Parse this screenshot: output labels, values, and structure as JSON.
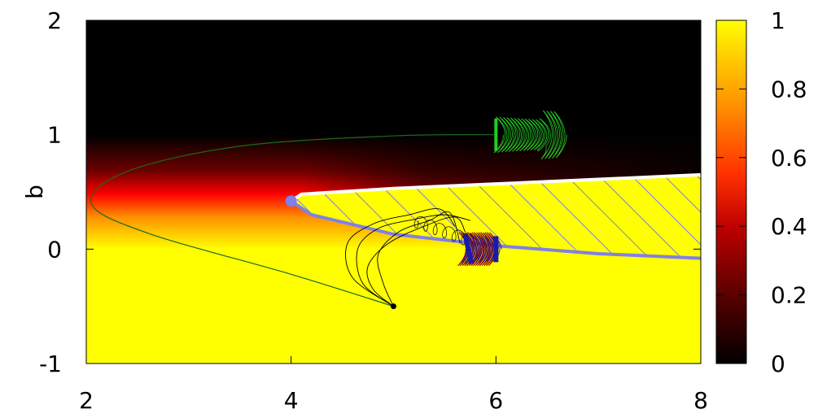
{
  "chart_data": {
    "type": "heatmap",
    "title": "",
    "xlabel": "",
    "ylabel": "b",
    "xlim": [
      2,
      8
    ],
    "ylim": [
      -1,
      2
    ],
    "x_ticks": [
      "2",
      "4",
      "6",
      "8"
    ],
    "x_tick_values": [
      2,
      4,
      6,
      8
    ],
    "y_ticks": [
      "-1",
      "0",
      "1",
      "2"
    ],
    "y_tick_values": [
      -1,
      0,
      1,
      2
    ],
    "colorbar": {
      "range": [
        0,
        1
      ],
      "ticks": [
        "0",
        "0.2",
        "0.4",
        "0.6",
        "0.8",
        "1"
      ],
      "tick_values": [
        0,
        0.2,
        0.4,
        0.6,
        0.8,
        1
      ],
      "palette": [
        "#000000",
        "#6e0000",
        "#ff0000",
        "#ff9000",
        "#ffff00"
      ]
    },
    "hatched_region": {
      "upper_boundary": [
        [
          4.0,
          0.42
        ],
        [
          4.1,
          0.48
        ],
        [
          5,
          0.53
        ],
        [
          6,
          0.57
        ],
        [
          7,
          0.61
        ],
        [
          8,
          0.65
        ]
      ],
      "lower_boundary": [
        [
          4.0,
          0.42
        ],
        [
          4.2,
          0.3
        ],
        [
          5,
          0.13
        ],
        [
          6,
          0.03
        ],
        [
          7,
          -0.04
        ],
        [
          8,
          -0.08
        ]
      ],
      "marker": [
        4.0,
        0.42
      ],
      "boundary_color": "#8080e8",
      "upper_edge_color": "#ffffff"
    },
    "trajectories": [
      {
        "color": "#1a6a1a",
        "start": [
          5.0,
          -0.5
        ],
        "path": [
          [
            5.0,
            -0.5
          ],
          [
            4.0,
            -0.22
          ],
          [
            2.6,
            0.14
          ],
          [
            2.05,
            0.4
          ],
          [
            2.4,
            0.68
          ],
          [
            3.5,
            0.9
          ],
          [
            5,
            0.99
          ],
          [
            6,
            1.0
          ]
        ],
        "oscillation_center": [
          6.0,
          1.0
        ],
        "oscillation_color": "#22cc22"
      },
      {
        "color": "#000000",
        "start": [
          5.0,
          -0.5
        ],
        "oscillation_center": [
          6.0,
          0.0
        ],
        "oscillation_colors": [
          "#8b0000",
          "#1a1aaa"
        ]
      }
    ]
  }
}
